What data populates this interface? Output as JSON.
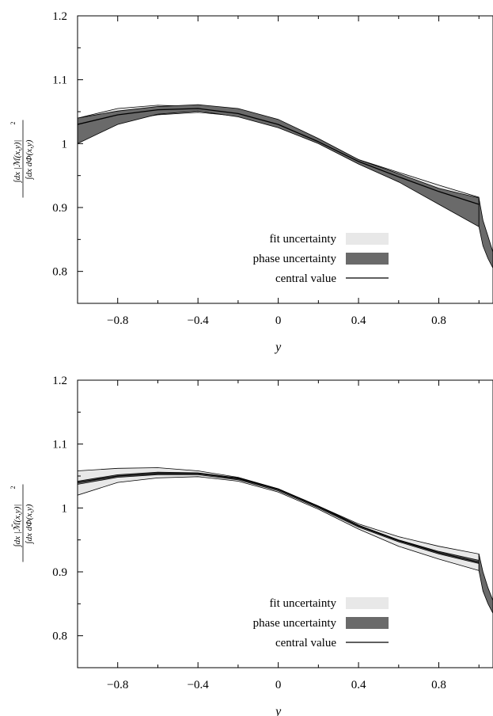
{
  "chart_data": [
    {
      "type": "line",
      "xlabel": "y",
      "ylabel_parts": {
        "numerator": "∫dx |ℳ(x,y)|",
        "exponent": "2",
        "denominator": "∫dx dΦ(x,y)"
      },
      "xlim": [
        -1.0,
        1.07
      ],
      "ylim": [
        0.75,
        1.2
      ],
      "xticks": [
        -0.8,
        -0.4,
        0,
        0.4,
        0.8
      ],
      "xtick_labels": [
        "−0.8",
        "−0.4",
        "0",
        "0.4",
        "0.8"
      ],
      "yticks": [
        0.8,
        0.9,
        1.0,
        1.1,
        1.2
      ],
      "ytick_labels": [
        "0.8",
        "0.9",
        "1",
        "1.1",
        "1.2"
      ],
      "grid": false,
      "legend_position": "bottom-right",
      "legend": [
        {
          "label": "fit uncertainty",
          "kind": "fill",
          "color": "#e8e8e8"
        },
        {
          "label": "phase uncertainty",
          "kind": "fill",
          "color": "#6a6a6a"
        },
        {
          "label": "central value",
          "kind": "line",
          "color": "#000000"
        }
      ],
      "series": [
        {
          "role": "fit uncertainty",
          "x": [
            -1.0,
            -0.8,
            -0.6,
            -0.4,
            -0.2,
            0.0,
            0.2,
            0.4,
            0.6,
            0.8,
            1.0
          ],
          "upper": [
            1.04,
            1.055,
            1.06,
            1.058,
            1.047,
            1.03,
            1.003,
            0.975,
            0.955,
            0.935,
            0.916
          ],
          "lower": [
            1.018,
            1.035,
            1.045,
            1.049,
            1.043,
            1.028,
            1.001,
            0.97,
            0.94,
            0.915,
            0.893
          ]
        },
        {
          "role": "phase uncertainty",
          "x": [
            -1.0,
            -0.8,
            -0.6,
            -0.4,
            -0.2,
            0.0,
            0.2,
            0.4,
            0.6,
            0.8,
            1.0
          ],
          "upper": [
            1.04,
            1.051,
            1.058,
            1.061,
            1.055,
            1.038,
            1.008,
            0.975,
            0.953,
            0.93,
            0.915
          ],
          "lower": [
            1.0,
            1.03,
            1.046,
            1.051,
            1.042,
            1.025,
            1.0,
            0.968,
            0.94,
            0.905,
            0.87
          ]
        },
        {
          "role": "central value",
          "x": [
            -1.0,
            -0.8,
            -0.6,
            -0.4,
            -0.2,
            0.0,
            0.2,
            0.4,
            0.6,
            0.8,
            1.0
          ],
          "y": [
            1.03,
            1.045,
            1.053,
            1.055,
            1.047,
            1.03,
            1.003,
            0.972,
            0.948,
            0.925,
            0.905
          ]
        }
      ],
      "edge_drop": {
        "x": [
          1.0,
          1.02,
          1.045,
          1.07
        ],
        "upper": [
          0.915,
          0.88,
          0.855,
          0.83
        ],
        "lower": [
          0.87,
          0.84,
          0.82,
          0.805
        ]
      }
    },
    {
      "type": "line",
      "xlabel": "y",
      "ylabel_parts": {
        "numerator": "∫dx |ℳ̄(x,y)|",
        "exponent": "2",
        "denominator": "∫dx dΦ(x,y)"
      },
      "xlim": [
        -1.0,
        1.07
      ],
      "ylim": [
        0.75,
        1.2
      ],
      "xticks": [
        -0.8,
        -0.4,
        0,
        0.4,
        0.8
      ],
      "xtick_labels": [
        "−0.8",
        "−0.4",
        "0",
        "0.4",
        "0.8"
      ],
      "yticks": [
        0.8,
        0.9,
        1.0,
        1.1,
        1.2
      ],
      "ytick_labels": [
        "0.8",
        "0.9",
        "1",
        "1.1",
        "1.2"
      ],
      "grid": false,
      "legend_position": "bottom-right",
      "legend": [
        {
          "label": "fit uncertainty",
          "kind": "fill",
          "color": "#e8e8e8"
        },
        {
          "label": "phase uncertainty",
          "kind": "fill",
          "color": "#6a6a6a"
        },
        {
          "label": "central value",
          "kind": "line",
          "color": "#000000"
        }
      ],
      "series": [
        {
          "role": "fit uncertainty",
          "x": [
            -1.0,
            -0.8,
            -0.6,
            -0.4,
            -0.2,
            0.0,
            0.2,
            0.4,
            0.6,
            0.8,
            1.0
          ],
          "upper": [
            1.058,
            1.062,
            1.063,
            1.058,
            1.048,
            1.03,
            1.003,
            0.975,
            0.955,
            0.94,
            0.928
          ],
          "lower": [
            1.02,
            1.04,
            1.047,
            1.049,
            1.042,
            1.025,
            0.998,
            0.967,
            0.94,
            0.92,
            0.902
          ]
        },
        {
          "role": "phase uncertainty",
          "x": [
            -1.0,
            -0.8,
            -0.6,
            -0.4,
            -0.2,
            0.0,
            0.2,
            0.4,
            0.6,
            0.8,
            1.0
          ],
          "upper": [
            1.042,
            1.052,
            1.056,
            1.055,
            1.047,
            1.03,
            1.003,
            0.973,
            0.95,
            0.932,
            0.918
          ],
          "lower": [
            1.037,
            1.048,
            1.052,
            1.052,
            1.044,
            1.027,
            1.0,
            0.97,
            0.947,
            0.928,
            0.913
          ]
        },
        {
          "role": "central value",
          "x": [
            -1.0,
            -0.8,
            -0.6,
            -0.4,
            -0.2,
            0.0,
            0.2,
            0.4,
            0.6,
            0.8,
            1.0
          ],
          "y": [
            1.04,
            1.05,
            1.054,
            1.054,
            1.046,
            1.029,
            1.002,
            0.972,
            0.949,
            0.93,
            0.915
          ]
        }
      ],
      "edge_drop": {
        "x": [
          1.0,
          1.02,
          1.045,
          1.07
        ],
        "upper": [
          0.928,
          0.9,
          0.875,
          0.855
        ],
        "lower": [
          0.902,
          0.87,
          0.85,
          0.835
        ]
      }
    }
  ]
}
